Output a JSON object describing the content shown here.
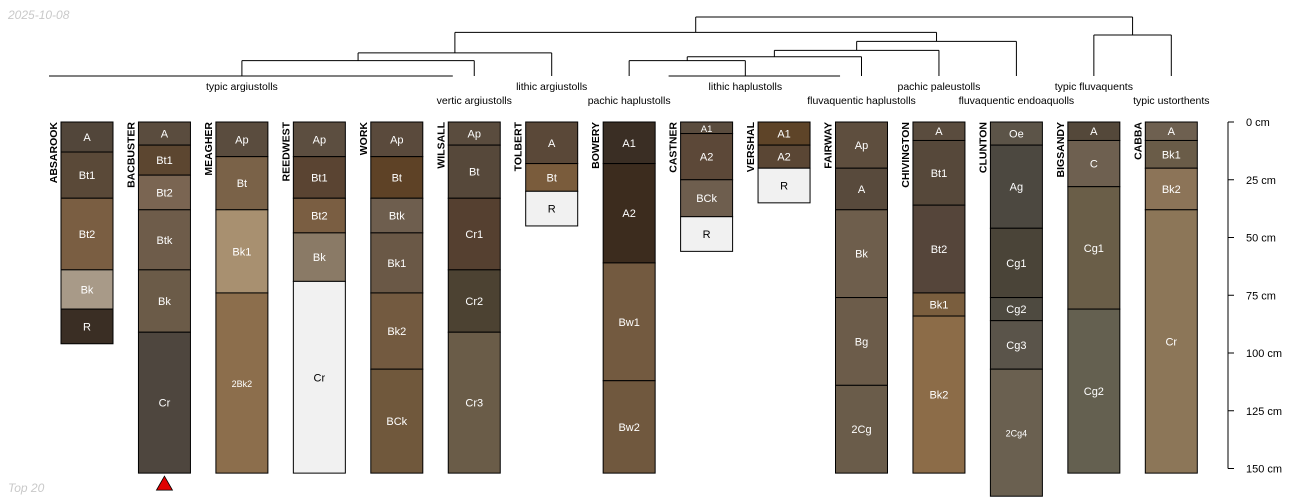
{
  "header": {
    "date": "2025-10-08"
  },
  "footer": {
    "label": "Top 20"
  },
  "chart_data": {
    "type": "soil-profile-sketch",
    "depth_unit": "cm",
    "depth_axis": {
      "min": 0,
      "max": 150,
      "ticks": [
        0,
        25,
        50,
        75,
        100,
        125,
        150
      ]
    },
    "profiles": [
      {
        "name": "ABSAROOK",
        "label": "typic argiustolls",
        "horizons": [
          {
            "name": "A",
            "top": 0,
            "bottom": 13,
            "color": "#52463a"
          },
          {
            "name": "Bt1",
            "top": 13,
            "bottom": 33,
            "color": "#5a4938"
          },
          {
            "name": "Bt2",
            "top": 33,
            "bottom": 64,
            "color": "#7a5e42"
          },
          {
            "name": "Bk",
            "top": 64,
            "bottom": 81,
            "color": "#a89a88"
          },
          {
            "name": "R",
            "top": 81,
            "bottom": 96,
            "color": "#3a2e24"
          }
        ]
      },
      {
        "name": "BACBUSTER",
        "label": "typic argiustolls",
        "marker": "bottom-triangle",
        "horizons": [
          {
            "name": "A",
            "top": 0,
            "bottom": 10,
            "color": "#5a4c3e"
          },
          {
            "name": "Bt1",
            "top": 10,
            "bottom": 23,
            "color": "#5c4630"
          },
          {
            "name": "Bt2",
            "top": 23,
            "bottom": 38,
            "color": "#7a6552"
          },
          {
            "name": "Btk",
            "top": 38,
            "bottom": 64,
            "color": "#6e5c4a"
          },
          {
            "name": "Bk",
            "top": 64,
            "bottom": 91,
            "color": "#6b5b48"
          },
          {
            "name": "Cr",
            "top": 91,
            "bottom": 152,
            "color": "#4e463e"
          }
        ]
      },
      {
        "name": "MEAGHER",
        "label": "typic argiustolls",
        "horizons": [
          {
            "name": "Ap",
            "top": 0,
            "bottom": 15,
            "color": "#5a4c3e"
          },
          {
            "name": "Bt",
            "top": 15,
            "bottom": 38,
            "color": "#7a6248"
          },
          {
            "name": "Bk1",
            "top": 38,
            "bottom": 74,
            "color": "#a89070"
          },
          {
            "name": "2Bk2",
            "top": 74,
            "bottom": 152,
            "color": "#8c6e4c"
          }
        ]
      },
      {
        "name": "REEDWEST",
        "label": "typic argiustolls",
        "horizons": [
          {
            "name": "Ap",
            "top": 0,
            "bottom": 15,
            "color": "#5c4e40"
          },
          {
            "name": "Bt1",
            "top": 15,
            "bottom": 33,
            "color": "#5a4432"
          },
          {
            "name": "Bt2",
            "top": 33,
            "bottom": 48,
            "color": "#7a5e42"
          },
          {
            "name": "Bk",
            "top": 48,
            "bottom": 69,
            "color": "#8a7a66"
          },
          {
            "name": "Cr",
            "top": 69,
            "bottom": 152,
            "color": "#f1f1f1"
          }
        ]
      },
      {
        "name": "WORK",
        "label": "typic argiustolls",
        "horizons": [
          {
            "name": "Ap",
            "top": 0,
            "bottom": 15,
            "color": "#5a4a3c"
          },
          {
            "name": "Bt",
            "top": 15,
            "bottom": 33,
            "color": "#5e4226"
          },
          {
            "name": "Btk",
            "top": 33,
            "bottom": 48,
            "color": "#6e5e4e"
          },
          {
            "name": "Bk1",
            "top": 48,
            "bottom": 74,
            "color": "#6a5846"
          },
          {
            "name": "Bk2",
            "top": 74,
            "bottom": 107,
            "color": "#735a40"
          },
          {
            "name": "BCk",
            "top": 107,
            "bottom": 152,
            "color": "#70583c"
          }
        ]
      },
      {
        "name": "WILSALL",
        "label": "vertic argiustolls",
        "horizons": [
          {
            "name": "Ap",
            "top": 0,
            "bottom": 10,
            "color": "#5a4c3e"
          },
          {
            "name": "Bt",
            "top": 10,
            "bottom": 33,
            "color": "#56483a"
          },
          {
            "name": "Cr1",
            "top": 33,
            "bottom": 64,
            "color": "#554030"
          },
          {
            "name": "Cr2",
            "top": 64,
            "bottom": 91,
            "color": "#4c4232"
          },
          {
            "name": "Cr3",
            "top": 91,
            "bottom": 152,
            "color": "#6a5c48"
          }
        ]
      },
      {
        "name": "TOLBERT",
        "label": "lithic argiustolls",
        "horizons": [
          {
            "name": "A",
            "top": 0,
            "bottom": 18,
            "color": "#5a4838"
          },
          {
            "name": "Bt",
            "top": 18,
            "bottom": 30,
            "color": "#7a5c3c"
          },
          {
            "name": "R",
            "top": 30,
            "bottom": 45,
            "color": "#f1f1f1"
          }
        ]
      },
      {
        "name": "BOWERY",
        "label": "pachic haplustolls",
        "horizons": [
          {
            "name": "A1",
            "top": 0,
            "bottom": 18,
            "color": "#3a2e24"
          },
          {
            "name": "A2",
            "top": 18,
            "bottom": 61,
            "color": "#3c2c1e"
          },
          {
            "name": "Bw1",
            "top": 61,
            "bottom": 112,
            "color": "#735a40"
          },
          {
            "name": "Bw2",
            "top": 112,
            "bottom": 152,
            "color": "#70583e"
          }
        ]
      },
      {
        "name": "CASTNER",
        "label": "lithic haplustolls",
        "horizons": [
          {
            "name": "A1",
            "top": 0,
            "bottom": 5,
            "color": "#5a4c3e"
          },
          {
            "name": "A2",
            "top": 5,
            "bottom": 25,
            "color": "#5c4838"
          },
          {
            "name": "BCk",
            "top": 25,
            "bottom": 41,
            "color": "#6e5e4e"
          },
          {
            "name": "R",
            "top": 41,
            "bottom": 56,
            "color": "#f1f1f1"
          }
        ]
      },
      {
        "name": "VERSHAL",
        "label": "lithic haplustolls",
        "horizons": [
          {
            "name": "A1",
            "top": 0,
            "bottom": 10,
            "color": "#5e4428"
          },
          {
            "name": "A2",
            "top": 10,
            "bottom": 20,
            "color": "#5a4634"
          },
          {
            "name": "R",
            "top": 20,
            "bottom": 35,
            "color": "#f1f1f1"
          }
        ]
      },
      {
        "name": "FAIRWAY",
        "label": "fluvaquentic haplustolls",
        "horizons": [
          {
            "name": "Ap",
            "top": 0,
            "bottom": 20,
            "color": "#5e4e3e"
          },
          {
            "name": "A",
            "top": 20,
            "bottom": 38,
            "color": "#584a3c"
          },
          {
            "name": "Bk",
            "top": 38,
            "bottom": 76,
            "color": "#6e5e4c"
          },
          {
            "name": "Bg",
            "top": 76,
            "bottom": 114,
            "color": "#6c5c4a"
          },
          {
            "name": "2Cg",
            "top": 114,
            "bottom": 152,
            "color": "#6a5c4a"
          }
        ]
      },
      {
        "name": "CHIVINGTON",
        "label": "pachic paleustolls",
        "horizons": [
          {
            "name": "A",
            "top": 0,
            "bottom": 8,
            "color": "#5a4c3e"
          },
          {
            "name": "Bt1",
            "top": 8,
            "bottom": 36,
            "color": "#56483a"
          },
          {
            "name": "Bt2",
            "top": 36,
            "bottom": 74,
            "color": "#55453a"
          },
          {
            "name": "Bk1",
            "top": 74,
            "bottom": 84,
            "color": "#7a5e3e"
          },
          {
            "name": "Bk2",
            "top": 84,
            "bottom": 152,
            "color": "#8c6c48"
          }
        ]
      },
      {
        "name": "CLUNTON",
        "label": "fluvaquentic endoaquolls",
        "horizons": [
          {
            "name": "Oe",
            "top": 0,
            "bottom": 10,
            "color": "#5c5448"
          },
          {
            "name": "Ag",
            "top": 10,
            "bottom": 46,
            "color": "#4c4840"
          },
          {
            "name": "Cg1",
            "top": 46,
            "bottom": 76,
            "color": "#4a4438"
          },
          {
            "name": "Cg2",
            "top": 76,
            "bottom": 86,
            "color": "#4e4a40"
          },
          {
            "name": "Cg3",
            "top": 86,
            "bottom": 107,
            "color": "#5a544a"
          },
          {
            "name": "2Cg4",
            "top": 107,
            "bottom": 162,
            "color": "#6a6050"
          }
        ]
      },
      {
        "name": "BIGSANDY",
        "label": "typic fluvaquents",
        "horizons": [
          {
            "name": "A",
            "top": 0,
            "bottom": 8,
            "color": "#54483a"
          },
          {
            "name": "C",
            "top": 8,
            "bottom": 28,
            "color": "#6e6050"
          },
          {
            "name": "Cg1",
            "top": 28,
            "bottom": 81,
            "color": "#6a5e48"
          },
          {
            "name": "Cg2",
            "top": 81,
            "bottom": 152,
            "color": "#646050"
          }
        ]
      },
      {
        "name": "CABBA",
        "label": "typic ustorthents",
        "horizons": [
          {
            "name": "A",
            "top": 0,
            "bottom": 8,
            "color": "#6e6050"
          },
          {
            "name": "Bk1",
            "top": 8,
            "bottom": 20,
            "color": "#6a5c48"
          },
          {
            "name": "Bk2",
            "top": 20,
            "bottom": 38,
            "color": "#8c7458"
          },
          {
            "name": "Cr",
            "top": 38,
            "bottom": 152,
            "color": "#8c7658"
          }
        ]
      }
    ],
    "group_labels": [
      {
        "text": "typic argiustolls",
        "members": [
          "ABSAROOK",
          "BACBUSTER",
          "MEAGHER",
          "REEDWEST",
          "WORK"
        ]
      },
      {
        "text": "vertic argiustolls",
        "members": [
          "WILSALL"
        ]
      },
      {
        "text": "lithic argiustolls",
        "members": [
          "TOLBERT"
        ]
      },
      {
        "text": "pachic haplustolls",
        "members": [
          "BOWERY"
        ]
      },
      {
        "text": "lithic haplustolls",
        "members": [
          "CASTNER",
          "VERSHAL"
        ]
      },
      {
        "text": "fluvaquentic haplustolls",
        "members": [
          "FAIRWAY"
        ]
      },
      {
        "text": "pachic paleustolls",
        "members": [
          "CHIVINGTON"
        ]
      },
      {
        "text": "fluvaquentic endoaquolls",
        "members": [
          "CLUNTON"
        ]
      },
      {
        "text": "typic fluvaquents",
        "members": [
          "BIGSANDY"
        ]
      },
      {
        "text": "typic ustorthents",
        "members": [
          "CABBA"
        ]
      }
    ],
    "dendrogram": {
      "leaves": [
        "typic argiustolls",
        "vertic argiustolls",
        "lithic argiustolls",
        "pachic haplustolls",
        "lithic haplustolls",
        "fluvaquentic haplustolls",
        "pachic paleustolls",
        "fluvaquentic endoaquolls",
        "typic fluvaquents",
        "typic ustorthents"
      ],
      "merges": [
        {
          "a": "L0",
          "b": "L1",
          "height": 0.12
        },
        {
          "a": "L3",
          "b": "L4",
          "height": 0.12
        },
        {
          "a": "N1",
          "b": "L5",
          "height": 0.15
        },
        {
          "a": "N0",
          "b": "L2",
          "height": 0.18
        },
        {
          "a": "N2",
          "b": "L6",
          "height": 0.2
        },
        {
          "a": "N4",
          "b": "L7",
          "height": 0.27
        },
        {
          "a": "L8",
          "b": "L9",
          "height": 0.32
        },
        {
          "a": "N3",
          "b": "N5",
          "height": 0.34
        },
        {
          "a": "N7",
          "b": "N6",
          "height": 0.46
        }
      ]
    }
  }
}
